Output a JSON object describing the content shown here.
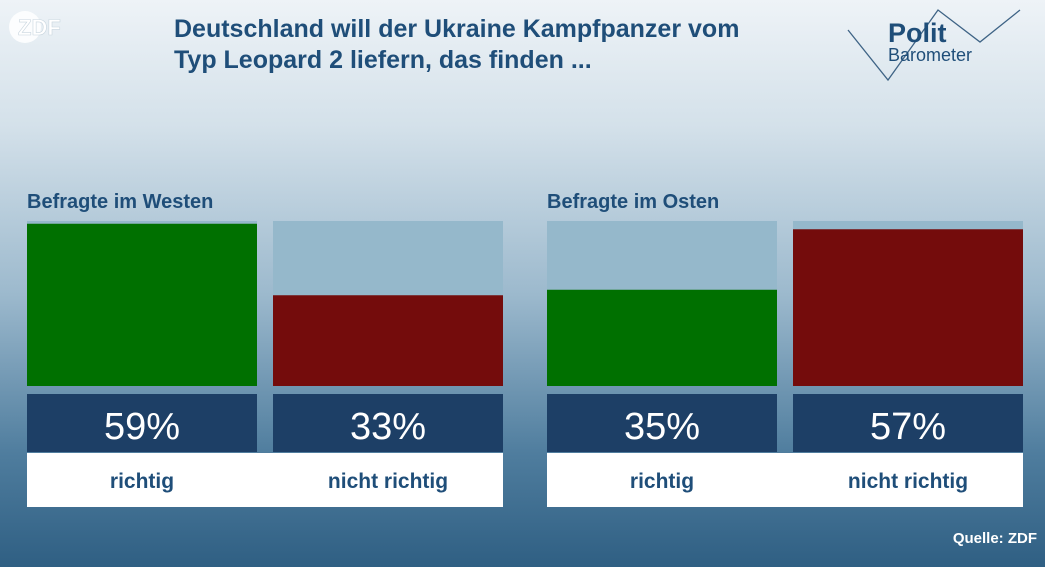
{
  "header": {
    "title_line1": "Deutschland will der Ukraine Kampfpanzer vom",
    "title_line2": "Typ Leopard 2 liefern, das finden ..."
  },
  "logos": {
    "zdf": "ZDF",
    "polit": "Polit",
    "barometer": "Barometer"
  },
  "footer": {
    "source": "Quelle: ZDF"
  },
  "colors": {
    "richtig": "#007000",
    "nicht_richtig": "#740c0c",
    "bar_track": "#95b8cb",
    "value_box": "#1d3f66",
    "label_box": "#ffffff",
    "text_dark": "#1f4e79"
  },
  "chart_data": {
    "type": "bar",
    "unit": "%",
    "ylim": [
      0,
      60
    ],
    "groups": [
      {
        "name": "Befragte im Westen",
        "bars": [
          {
            "label": "richtig",
            "value": 59,
            "value_label": "59%",
            "color_key": "richtig"
          },
          {
            "label": "nicht richtig",
            "value": 33,
            "value_label": "33%",
            "color_key": "nicht_richtig"
          }
        ]
      },
      {
        "name": "Befragte im Osten",
        "bars": [
          {
            "label": "richtig",
            "value": 35,
            "value_label": "35%",
            "color_key": "richtig"
          },
          {
            "label": "nicht richtig",
            "value": 57,
            "value_label": "57%",
            "color_key": "nicht_richtig"
          }
        ]
      }
    ]
  }
}
